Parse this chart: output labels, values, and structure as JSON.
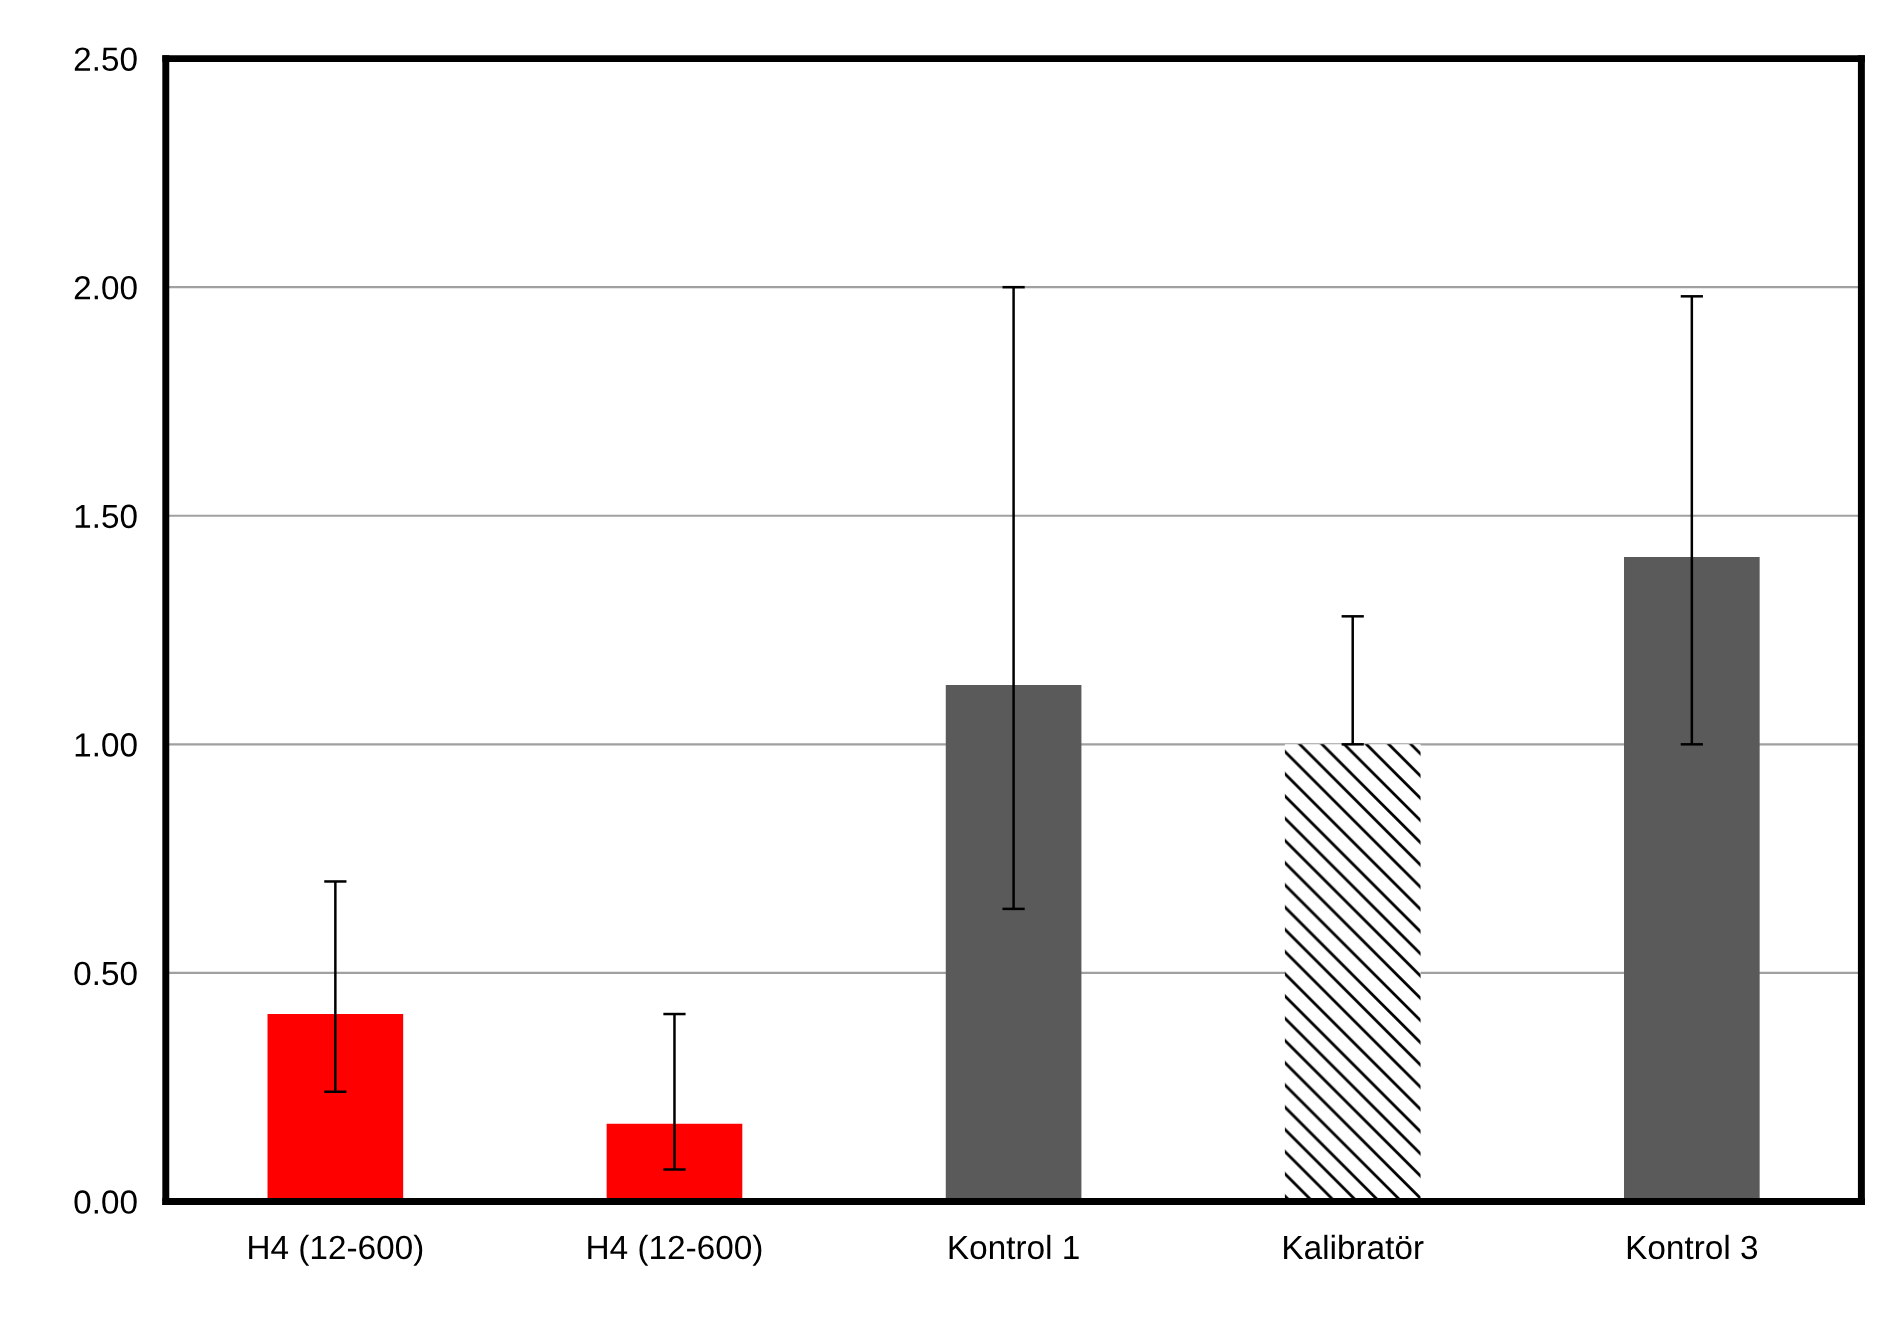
{
  "chart_data": {
    "type": "bar",
    "categories": [
      "H4 (12-600)",
      "H4 (12-600)",
      "Kontrol 1",
      "Kalibratör",
      "Kontrol 3"
    ],
    "values": [
      0.41,
      0.17,
      1.13,
      1.0,
      1.41
    ],
    "colors": [
      "#ff0000",
      "#ff0000",
      "#5a5a5a",
      "#000000",
      "#5a5a5a"
    ],
    "errors": [
      [
        0.24,
        0.7
      ],
      [
        0.07,
        0.41
      ],
      [
        0.64,
        2.0
      ],
      [
        1.0,
        1.28
      ],
      [
        1.0,
        1.98
      ]
    ],
    "ylim": [
      0,
      2.5
    ],
    "yticks": [
      {
        "value": 0,
        "label": "0.00"
      },
      {
        "value": 0.5,
        "label": "0.50"
      },
      {
        "value": 1,
        "label": "1.00"
      },
      {
        "value": 1.5,
        "label": "1.50"
      },
      {
        "value": 2,
        "label": "2.00"
      },
      {
        "value": 2.5,
        "label": "2.50"
      }
    ],
    "grid": "y"
  }
}
